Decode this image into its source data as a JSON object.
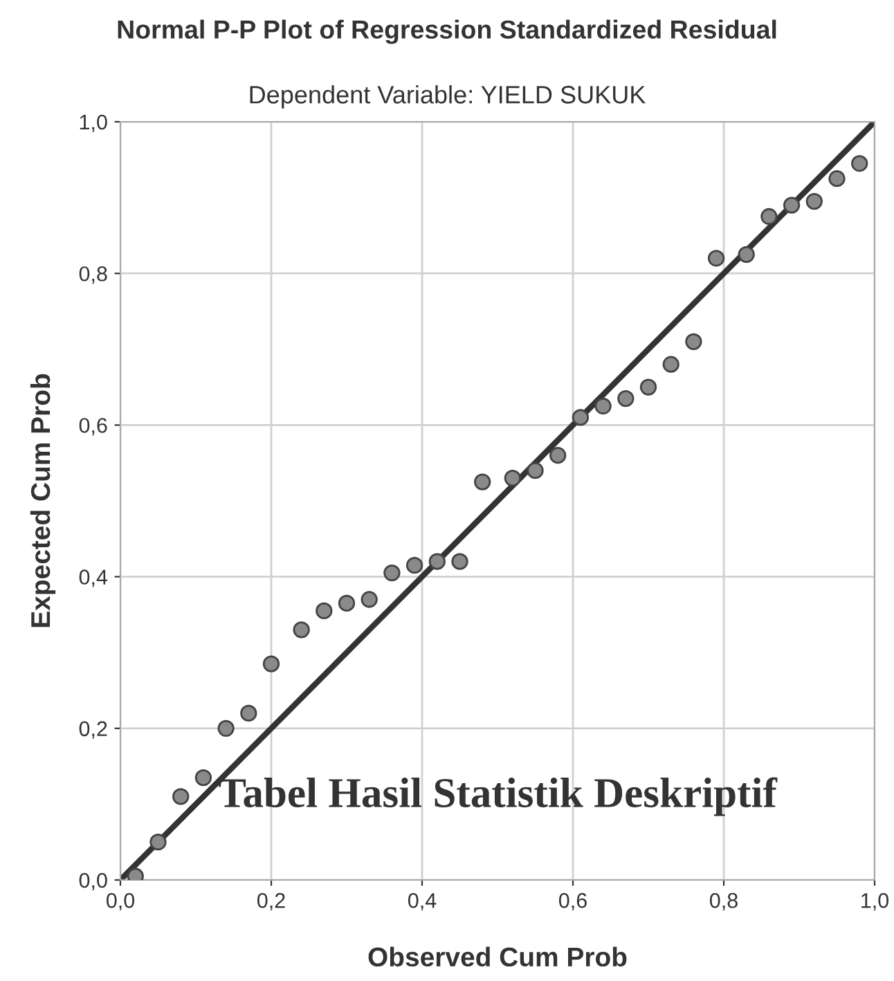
{
  "chart_data": {
    "type": "scatter",
    "title": "Normal P-P Plot of Regression Standardized Residual",
    "subtitle": "Dependent Variable: YIELD SUKUK",
    "xlabel": "Observed Cum Prob",
    "ylabel": "Expected Cum Prob",
    "series": [
      {
        "color": "#8a8a8a",
        "x": [
          0.02,
          0.05,
          0.08,
          0.11,
          0.14,
          0.17,
          0.2,
          0.24,
          0.27,
          0.3,
          0.33,
          0.36,
          0.39,
          0.42,
          0.45,
          0.48,
          0.52,
          0.55,
          0.58,
          0.61,
          0.64,
          0.67,
          0.7,
          0.73,
          0.76,
          0.79,
          0.83,
          0.86,
          0.89,
          0.92,
          0.95,
          0.98
        ],
        "values": [
          0.005,
          0.05,
          0.11,
          0.135,
          0.2,
          0.22,
          0.285,
          0.33,
          0.355,
          0.365,
          0.37,
          0.405,
          0.415,
          0.42,
          0.42,
          0.525,
          0.53,
          0.54,
          0.56,
          0.61,
          0.625,
          0.635,
          0.65,
          0.68,
          0.71,
          0.82,
          0.825,
          0.875,
          0.89,
          0.895,
          0.925,
          0.945
        ]
      },
      {
        "type": "line",
        "marker": "none",
        "color": "#333333",
        "x": [
          0,
          1
        ],
        "values": [
          0,
          1
        ]
      }
    ],
    "xlim": [
      0,
      1
    ],
    "ylim": [
      0,
      1
    ],
    "xticks": [
      {
        "value": 0,
        "label": "0,0"
      },
      {
        "value": 0.2,
        "label": "0,2"
      },
      {
        "value": 0.4,
        "label": "0,4"
      },
      {
        "value": 0.6,
        "label": "0,6"
      },
      {
        "value": 0.8,
        "label": "0,8"
      },
      {
        "value": 1,
        "label": "1,0"
      }
    ],
    "yticks": [
      {
        "value": 0,
        "label": "0,0"
      },
      {
        "value": 0.2,
        "label": "0,2"
      },
      {
        "value": 0.4,
        "label": "0,4"
      },
      {
        "value": 0.6,
        "label": "0,6"
      },
      {
        "value": 0.8,
        "label": "0,8"
      },
      {
        "value": 1,
        "label": "1,0"
      }
    ],
    "grid": true,
    "marker": "circle",
    "annotations": [
      "Tabel Hasil Statistik Deskriptif"
    ]
  }
}
